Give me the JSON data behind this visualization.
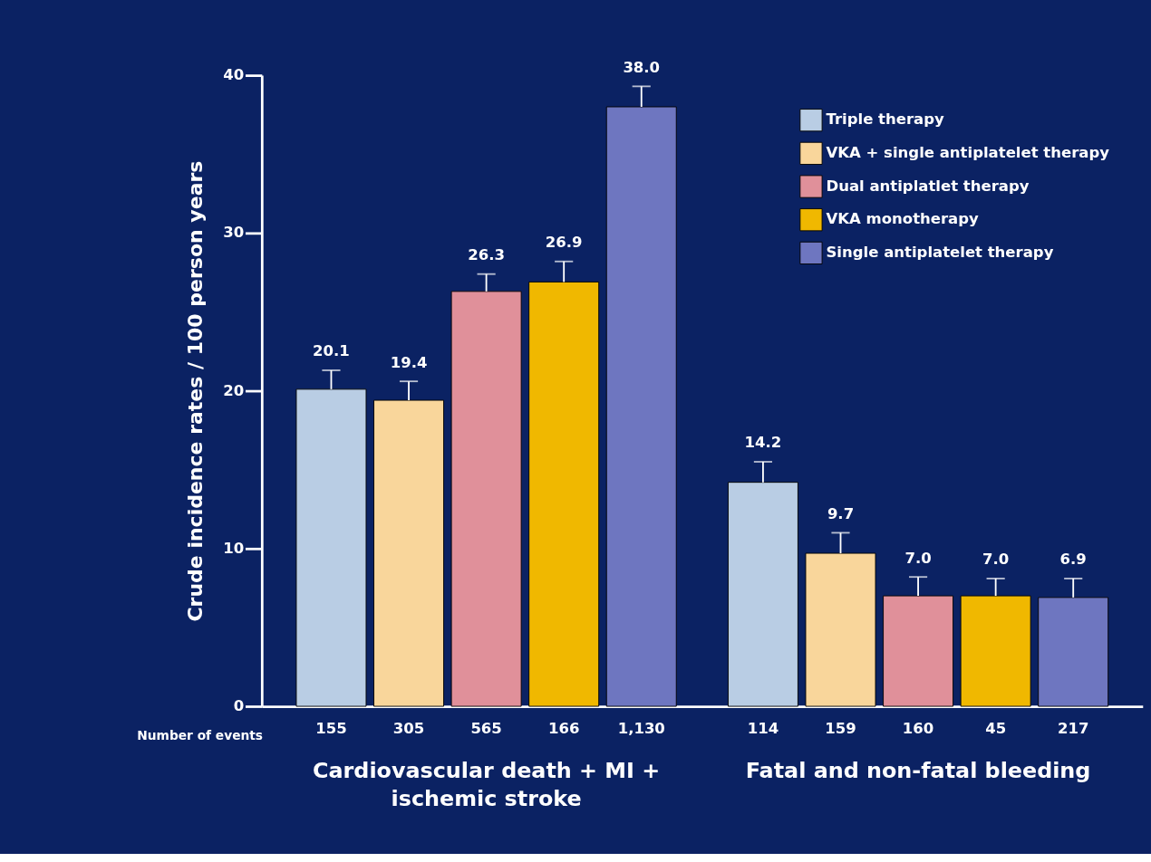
{
  "chart_data": {
    "type": "bar",
    "ylabel": "Crude incidence rates / 100 person years",
    "categories": [
      "Cardiovascular death + MI + ischemic stroke",
      "Fatal and non-fatal bleeding"
    ],
    "series": [
      {
        "name": "Triple therapy",
        "color": "#b9cde4",
        "values": [
          20.1,
          14.2
        ],
        "value_labels": [
          "20.1",
          "14.2"
        ],
        "errors": [
          [
            20.1,
            21.3
          ],
          [
            14.2,
            15.5
          ]
        ]
      },
      {
        "name": "VKA + single antiplatelet therapy",
        "color": "#f9d69b",
        "values": [
          19.4,
          9.7
        ],
        "value_labels": [
          "19.4",
          "9.7"
        ],
        "errors": [
          [
            19.4,
            20.6
          ],
          [
            9.7,
            11.0
          ]
        ]
      },
      {
        "name": "Dual antiplatlet therapy",
        "color": "#e0909a",
        "values": [
          26.3,
          7.0
        ],
        "value_labels": [
          "26.3",
          "7.0"
        ],
        "errors": [
          [
            26.3,
            27.4
          ],
          [
            7.0,
            8.2
          ]
        ]
      },
      {
        "name": "VKA monotherapy",
        "color": "#f0b800",
        "values": [
          26.9,
          7.0
        ],
        "value_labels": [
          "26.9",
          "7.0"
        ],
        "errors": [
          [
            26.9,
            28.2
          ],
          [
            7.0,
            8.1
          ]
        ]
      },
      {
        "name": "Single antiplatelet therapy",
        "color": "#6e76c0",
        "values": [
          38.0,
          6.9
        ],
        "value_labels": [
          "38.0",
          "6.9"
        ],
        "errors": [
          [
            38.0,
            39.3
          ],
          [
            6.9,
            8.1
          ]
        ]
      }
    ],
    "ylim": [
      0,
      40
    ],
    "yticks": [
      0,
      10,
      20,
      30,
      40
    ],
    "legend": "top right",
    "annotations": [
      "Number of events",
      "155",
      "305",
      "565",
      "166",
      "1,130",
      "114",
      "159",
      "160",
      "45",
      "217"
    ]
  }
}
